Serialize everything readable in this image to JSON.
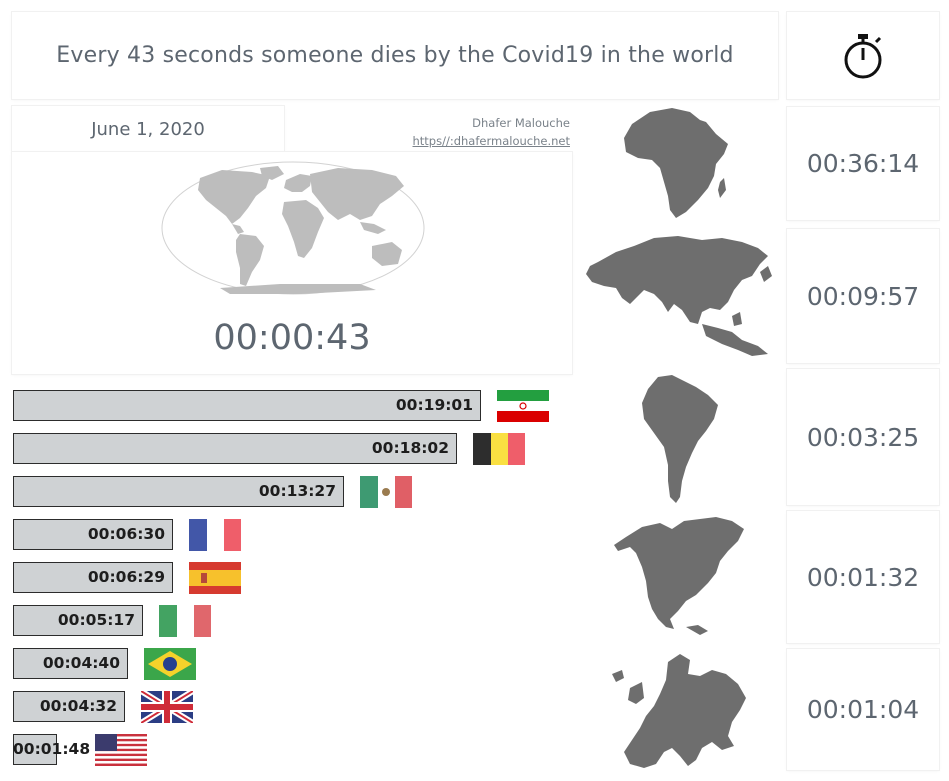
{
  "header": {
    "title": "Every 43 seconds  someone dies by the Covid19 in the world",
    "timer_icon": "stopwatch-icon"
  },
  "info": {
    "date": "June 1, 2020",
    "author": "Dhafer Malouche",
    "author_url": "https//:dhafermalouche.net"
  },
  "world": {
    "map_icon": "world-map-icon",
    "interval": "00:00:43"
  },
  "countries": [
    {
      "flag": "flag-iran-icon",
      "interval": "00:19:01",
      "seconds": 1141
    },
    {
      "flag": "flag-belgium-icon",
      "interval": "00:18:02",
      "seconds": 1082
    },
    {
      "flag": "flag-mexico-icon",
      "interval": "00:13:27",
      "seconds": 807
    },
    {
      "flag": "flag-france-icon",
      "interval": "00:06:30",
      "seconds": 390
    },
    {
      "flag": "flag-spain-icon",
      "interval": "00:06:29",
      "seconds": 389
    },
    {
      "flag": "flag-italy-icon",
      "interval": "00:05:17",
      "seconds": 317
    },
    {
      "flag": "flag-brazil-icon",
      "interval": "00:04:40",
      "seconds": 280
    },
    {
      "flag": "flag-uk-icon",
      "interval": "00:04:32",
      "seconds": 272
    },
    {
      "flag": "flag-usa-icon",
      "interval": "00:01:48",
      "seconds": 108
    }
  ],
  "continents": [
    {
      "map": "africa-map-icon",
      "interval": "00:36:14"
    },
    {
      "map": "asia-map-icon",
      "interval": "00:09:57"
    },
    {
      "map": "south-america-map-icon",
      "interval": "00:03:25"
    },
    {
      "map": "north-america-map-icon",
      "interval": "00:01:32"
    },
    {
      "map": "europe-map-icon",
      "interval": "00:01:04"
    }
  ],
  "colors": {
    "map_fill": "#6e6e6e",
    "world_fill": "#bdbdbd",
    "bar_fill": "#cfd2d4",
    "text": "#5d6670"
  }
}
